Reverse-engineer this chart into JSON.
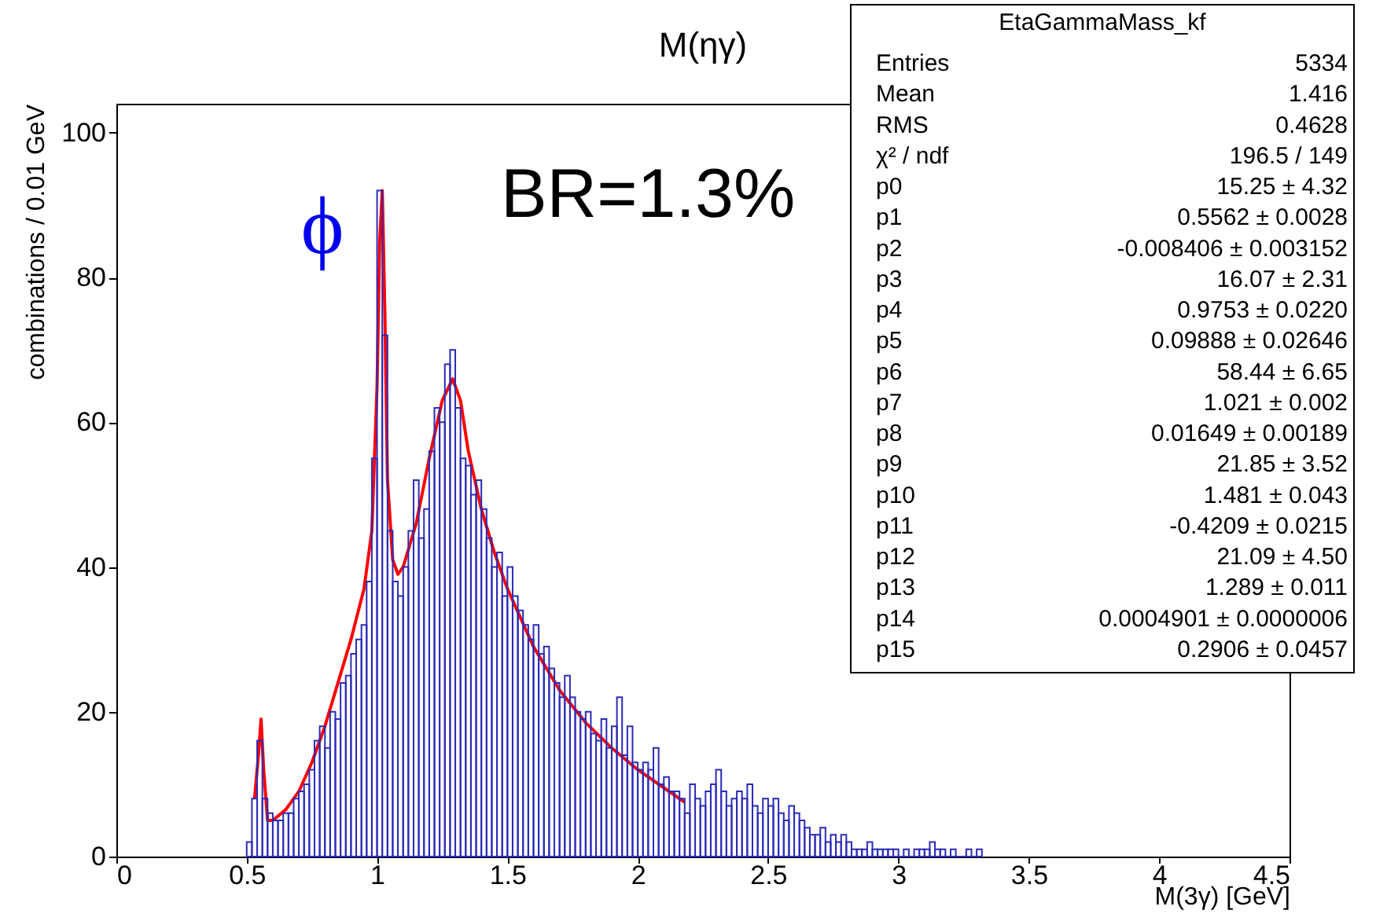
{
  "chart_data": {
    "type": "histogram",
    "title": "M(ηγ)",
    "xlabel": "M(3γ) [GeV]",
    "ylabel": "combinations / 0.01 GeV",
    "xlim": [
      0,
      4.5
    ],
    "xticks": [
      0,
      0.5,
      1,
      1.5,
      2,
      2.5,
      3,
      3.5,
      4,
      4.5
    ],
    "ylim": [
      0,
      104
    ],
    "yticks": [
      0,
      20,
      40,
      60,
      80,
      100
    ],
    "bins": [
      0.5,
      0.52,
      0.54,
      0.56,
      0.58,
      0.6,
      0.62,
      0.64,
      0.66,
      0.68,
      0.7,
      0.72,
      0.74,
      0.76,
      0.78,
      0.8,
      0.82,
      0.84,
      0.86,
      0.88,
      0.9,
      0.92,
      0.94,
      0.96,
      0.98,
      1.0,
      1.02,
      1.04,
      1.06,
      1.08,
      1.1,
      1.12,
      1.14,
      1.16,
      1.18,
      1.2,
      1.22,
      1.24,
      1.26,
      1.28,
      1.3,
      1.32,
      1.34,
      1.36,
      1.38,
      1.4,
      1.42,
      1.44,
      1.46,
      1.48,
      1.5,
      1.52,
      1.54,
      1.56,
      1.58,
      1.6,
      1.62,
      1.64,
      1.66,
      1.68,
      1.7,
      1.72,
      1.74,
      1.76,
      1.78,
      1.8,
      1.82,
      1.84,
      1.86,
      1.88,
      1.9,
      1.92,
      1.94,
      1.96,
      1.98,
      2.0,
      2.02,
      2.04,
      2.06,
      2.08,
      2.1,
      2.12,
      2.14,
      2.16,
      2.18,
      2.2,
      2.22,
      2.24,
      2.26,
      2.28,
      2.3,
      2.32,
      2.34,
      2.36,
      2.38,
      2.4,
      2.42,
      2.44,
      2.46,
      2.48,
      2.5,
      2.52,
      2.54,
      2.56,
      2.58,
      2.6,
      2.62,
      2.64,
      2.66,
      2.68,
      2.7,
      2.72,
      2.74,
      2.76,
      2.78,
      2.8,
      2.82,
      2.84,
      2.86,
      2.88,
      2.9,
      2.92,
      2.94,
      2.96,
      2.98,
      3.0,
      3.02,
      3.04,
      3.06,
      3.08,
      3.1,
      3.12,
      3.14,
      3.16,
      3.18,
      3.2,
      3.22,
      3.24,
      3.26,
      3.28,
      3.3,
      3.32
    ],
    "series": [
      {
        "color": "#2b2bb8",
        "values": [
          2,
          8,
          16,
          8,
          6,
          5,
          5,
          6,
          6,
          8,
          9,
          10,
          12,
          16,
          18,
          15,
          20,
          19,
          24,
          25,
          28,
          30,
          32,
          38,
          55,
          92,
          72,
          45,
          38,
          36,
          40,
          45,
          52,
          44,
          48,
          56,
          62,
          60,
          68,
          70,
          62,
          55,
          54,
          50,
          52,
          48,
          44,
          40,
          42,
          36,
          40,
          36,
          34,
          32,
          30,
          32,
          28,
          29,
          26,
          24,
          22,
          25,
          22,
          20,
          19,
          20,
          17,
          16,
          19,
          15,
          18,
          22,
          14,
          18,
          13,
          12,
          13,
          12,
          15,
          10,
          11,
          9,
          9,
          8,
          6,
          10,
          8,
          7,
          9,
          10,
          12,
          9,
          7,
          8,
          9,
          8,
          10,
          7,
          6,
          8,
          7,
          8,
          6,
          5,
          7,
          6,
          5,
          4,
          3,
          3,
          4,
          2,
          3,
          2,
          3,
          2,
          1,
          1,
          1,
          2,
          1,
          1,
          1,
          1,
          1,
          0,
          1,
          0,
          1,
          1,
          1,
          2,
          1,
          1,
          0,
          1,
          0,
          0,
          1,
          0,
          1
        ]
      },
      {
        "type": "line",
        "color": "#ff0000",
        "x": [
          0.53,
          0.545,
          0.555,
          0.565,
          0.58,
          0.6,
          0.65,
          0.7,
          0.75,
          0.8,
          0.85,
          0.9,
          0.95,
          0.98,
          1.0,
          1.01,
          1.02,
          1.03,
          1.04,
          1.06,
          1.08,
          1.1,
          1.15,
          1.2,
          1.25,
          1.29,
          1.32,
          1.35,
          1.4,
          1.45,
          1.5,
          1.6,
          1.7,
          1.8,
          1.9,
          2.0,
          2.1,
          2.18
        ],
        "values": [
          8,
          14,
          19,
          12,
          5,
          5,
          6.5,
          9,
          13,
          18,
          24,
          30,
          37,
          45,
          65,
          85,
          92,
          75,
          52,
          41,
          39,
          40,
          46,
          55,
          63,
          66,
          63,
          56,
          48,
          42,
          37,
          29,
          23,
          18.5,
          15,
          12,
          9.5,
          7.5
        ]
      }
    ],
    "annotations": [
      "ϕ",
      "BR=1.3%",
      "EtaGammaMass_kf",
      "Entries",
      "5334",
      "Mean",
      "1.416",
      "RMS",
      "0.4628",
      "χ² / ndf",
      "196.5 / 149",
      "p0",
      "15.25 ± 4.32",
      "p1",
      "0.5562 ± 0.0028",
      "p2",
      "-0.008406 ± 0.003152",
      "p3",
      "16.07 ± 2.31",
      "p4",
      "0.9753 ± 0.0220",
      "p5",
      "0.09888 ± 0.02646",
      "p6",
      "58.44 ± 6.65",
      "p7",
      "1.021 ± 0.002",
      "p8",
      "0.01649 ± 0.00189",
      "p9",
      "21.85 ± 3.52",
      "p10",
      "1.481 ± 0.043",
      "p11",
      "-0.4209 ± 0.0215",
      "p12",
      "21.09 ± 4.50",
      "p13",
      "1.289 ± 0.011",
      "p14",
      "0.0004901 ± 0.0000006",
      "p15",
      "0.2906 ± 0.0457"
    ]
  }
}
